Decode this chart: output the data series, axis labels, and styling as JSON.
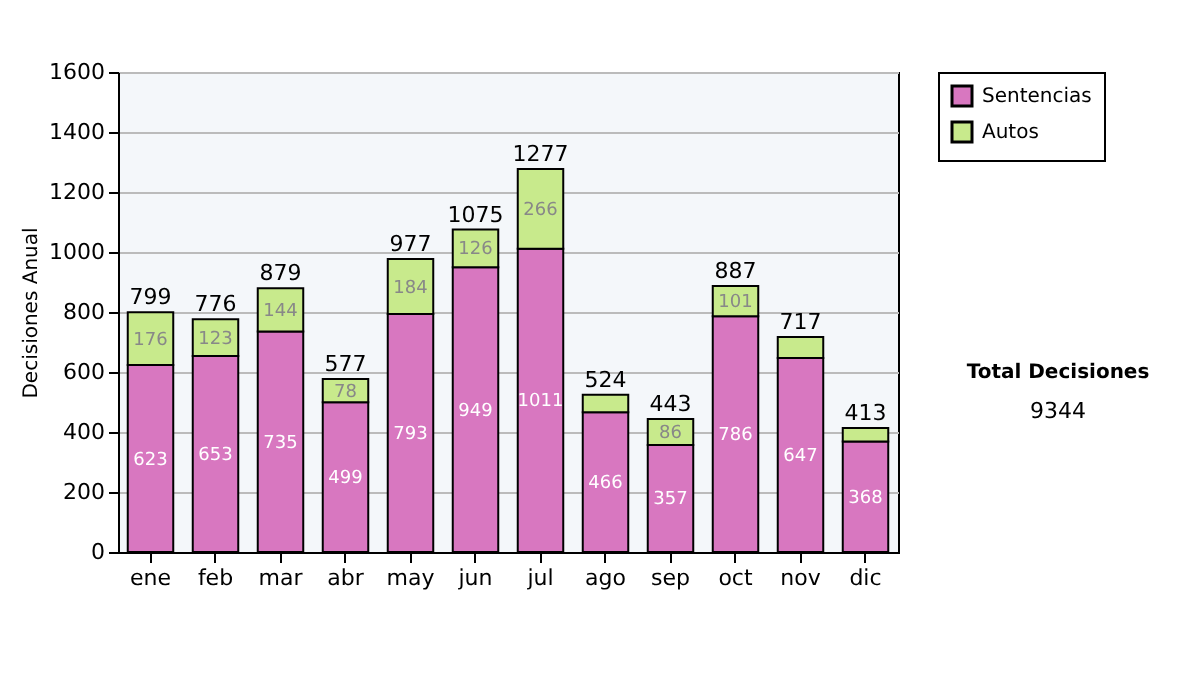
{
  "chart_data": {
    "type": "bar",
    "stacked": true,
    "ylabel": "Decisiones Anual",
    "categories": [
      "ene",
      "feb",
      "mar",
      "abr",
      "may",
      "jun",
      "jul",
      "ago",
      "sep",
      "oct",
      "nov",
      "dic"
    ],
    "series": [
      {
        "name": "Sentencias",
        "color": "#d877c0",
        "values": [
          623,
          653,
          735,
          499,
          793,
          949,
          1011,
          466,
          357,
          786,
          647,
          368
        ],
        "value_labels": [
          "623",
          "653",
          "735",
          "499",
          "793",
          "949",
          "1011",
          "466",
          "357",
          "786",
          "647",
          "368"
        ]
      },
      {
        "name": "Autos",
        "color": "#c8ea8c",
        "values": [
          176,
          123,
          144,
          78,
          184,
          126,
          266,
          58,
          86,
          101,
          70,
          45
        ],
        "value_labels": [
          "176",
          "123",
          "144",
          "78",
          "184",
          "126",
          "266",
          null,
          "86",
          "101",
          null,
          null
        ]
      }
    ],
    "totals": [
      "799",
      "776",
      "879",
      "577",
      "977",
      "1075",
      "1277",
      "524",
      "443",
      "887",
      "717",
      "413"
    ],
    "ylim": [
      0,
      1600
    ],
    "yticks": [
      0,
      200,
      400,
      600,
      800,
      1000,
      1200,
      1400,
      1600
    ],
    "grid": "y",
    "legend": "right",
    "annotations": [
      "Total Decisiones",
      "9344"
    ]
  }
}
